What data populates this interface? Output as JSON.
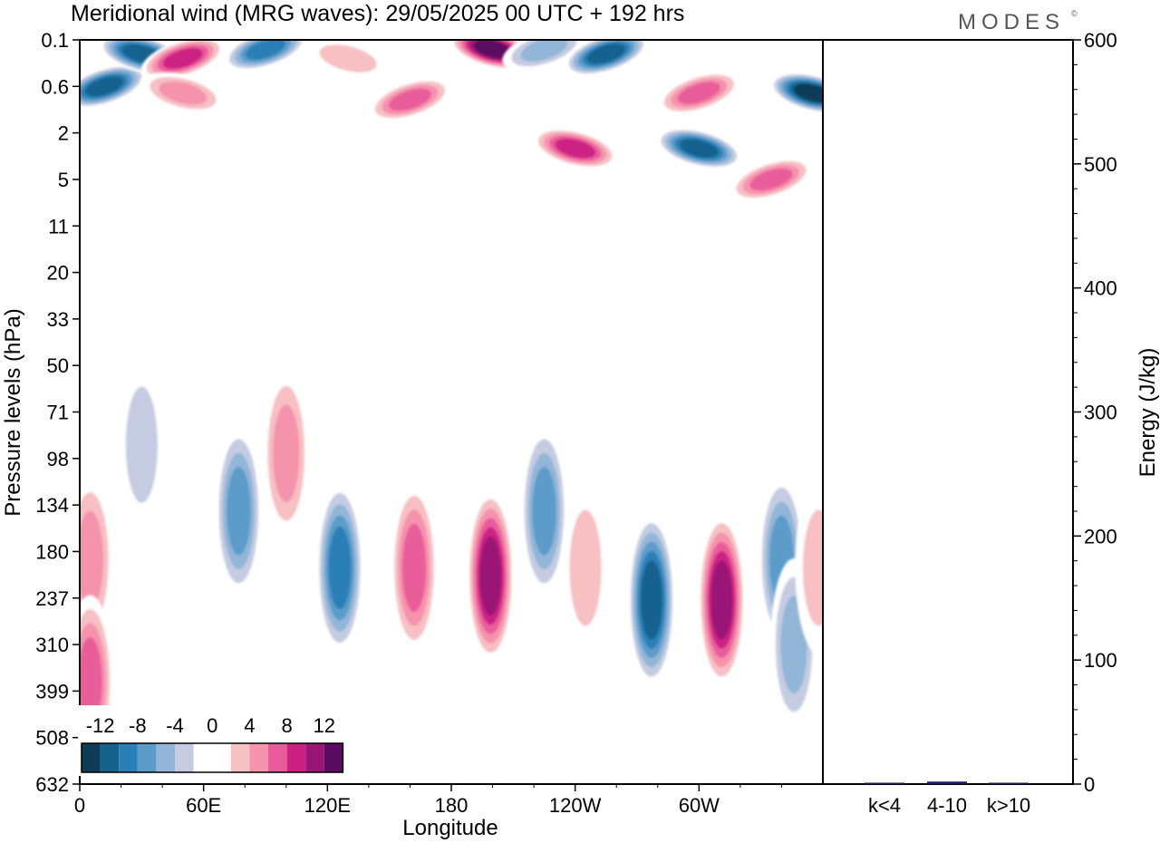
{
  "title": "Meridional wind (MRG waves):  29/05/2025  00 UTC  + 192 hrs",
  "logo": "MODES",
  "logo_mark": "©",
  "chart_data": [
    {
      "type": "heatmap",
      "xlabel": "Longitude",
      "ylabel": "Pressure levels (hPa)",
      "xticks": [
        "0",
        "60E",
        "120E",
        "180",
        "120W",
        "60W"
      ],
      "yticks": [
        "0.1",
        "0.6",
        "2",
        "5",
        "11",
        "20",
        "33",
        "50",
        "71",
        "98",
        "134",
        "180",
        "237",
        "310",
        "399",
        "508",
        "632"
      ],
      "colorbar": {
        "tick_labels": [
          "-12",
          "-8",
          "-4",
          "0",
          "4",
          "8",
          "12"
        ],
        "levels": [
          -14,
          -12,
          -10,
          -8,
          -6,
          -4,
          -2,
          2,
          4,
          6,
          8,
          10,
          12,
          14
        ],
        "colors": [
          "#0f3d57",
          "#16628e",
          "#2a80b6",
          "#5b9bca",
          "#92b6d8",
          "#c5cce2",
          "#ffffff",
          "#ffffff",
          "#f7c0c3",
          "#f593ad",
          "#ea5d9b",
          "#cc2183",
          "#9a1576",
          "#5a0a61"
        ]
      },
      "features": [
        {
          "lon": 12,
          "lev": 0.6,
          "value": -12
        },
        {
          "lon": 30,
          "lev": 0.25,
          "value": -12
        },
        {
          "lon": 50,
          "lev": 0.3,
          "value": 10
        },
        {
          "lon": 50,
          "lev": 0.8,
          "value": 6
        },
        {
          "lon": 90,
          "lev": 0.2,
          "value": -10
        },
        {
          "lon": 130,
          "lev": 0.3,
          "value": 4
        },
        {
          "lon": 160,
          "lev": 1.0,
          "value": 8
        },
        {
          "lon": 200,
          "lev": 0.2,
          "value": 14
        },
        {
          "lon": 225,
          "lev": 0.2,
          "value": -6
        },
        {
          "lon": 240,
          "lev": 3.0,
          "value": 10
        },
        {
          "lon": 255,
          "lev": 0.25,
          "value": -12
        },
        {
          "lon": 300,
          "lev": 3.0,
          "value": -12
        },
        {
          "lon": 300,
          "lev": 0.8,
          "value": 8
        },
        {
          "lon": 355,
          "lev": 0.8,
          "value": -14
        },
        {
          "lon": 335,
          "lev": 5.0,
          "value": 8
        },
        {
          "lon": 5,
          "lev": 190,
          "value": 6
        },
        {
          "lon": 5,
          "lev": 380,
          "value": 8
        },
        {
          "lon": 30,
          "lev": 90,
          "value": -4
        },
        {
          "lon": 77,
          "lev": 140,
          "value": -8
        },
        {
          "lon": 100,
          "lev": 95,
          "value": 6
        },
        {
          "lon": 126,
          "lev": 200,
          "value": -10
        },
        {
          "lon": 162,
          "lev": 200,
          "value": 8
        },
        {
          "lon": 199,
          "lev": 210,
          "value": 12
        },
        {
          "lon": 225,
          "lev": 140,
          "value": -8
        },
        {
          "lon": 245,
          "lev": 200,
          "value": 4
        },
        {
          "lon": 277,
          "lev": 240,
          "value": -12
        },
        {
          "lon": 311,
          "lev": 240,
          "value": 12
        },
        {
          "lon": 340,
          "lev": 190,
          "value": -8
        },
        {
          "lon": 346,
          "lev": 310,
          "value": -6
        },
        {
          "lon": 358,
          "lev": 200,
          "value": 4
        }
      ]
    },
    {
      "type": "bar",
      "ylabel": "Energy (J/kg)",
      "categories": [
        "k<4",
        "4-10",
        "k>10"
      ],
      "values": [
        0.5,
        2,
        0.2
      ],
      "ylim": [
        0,
        600
      ],
      "yticks": [
        "0",
        "100",
        "200",
        "300",
        "400",
        "500",
        "600"
      ],
      "bar_color": "#1a1a5e"
    }
  ]
}
